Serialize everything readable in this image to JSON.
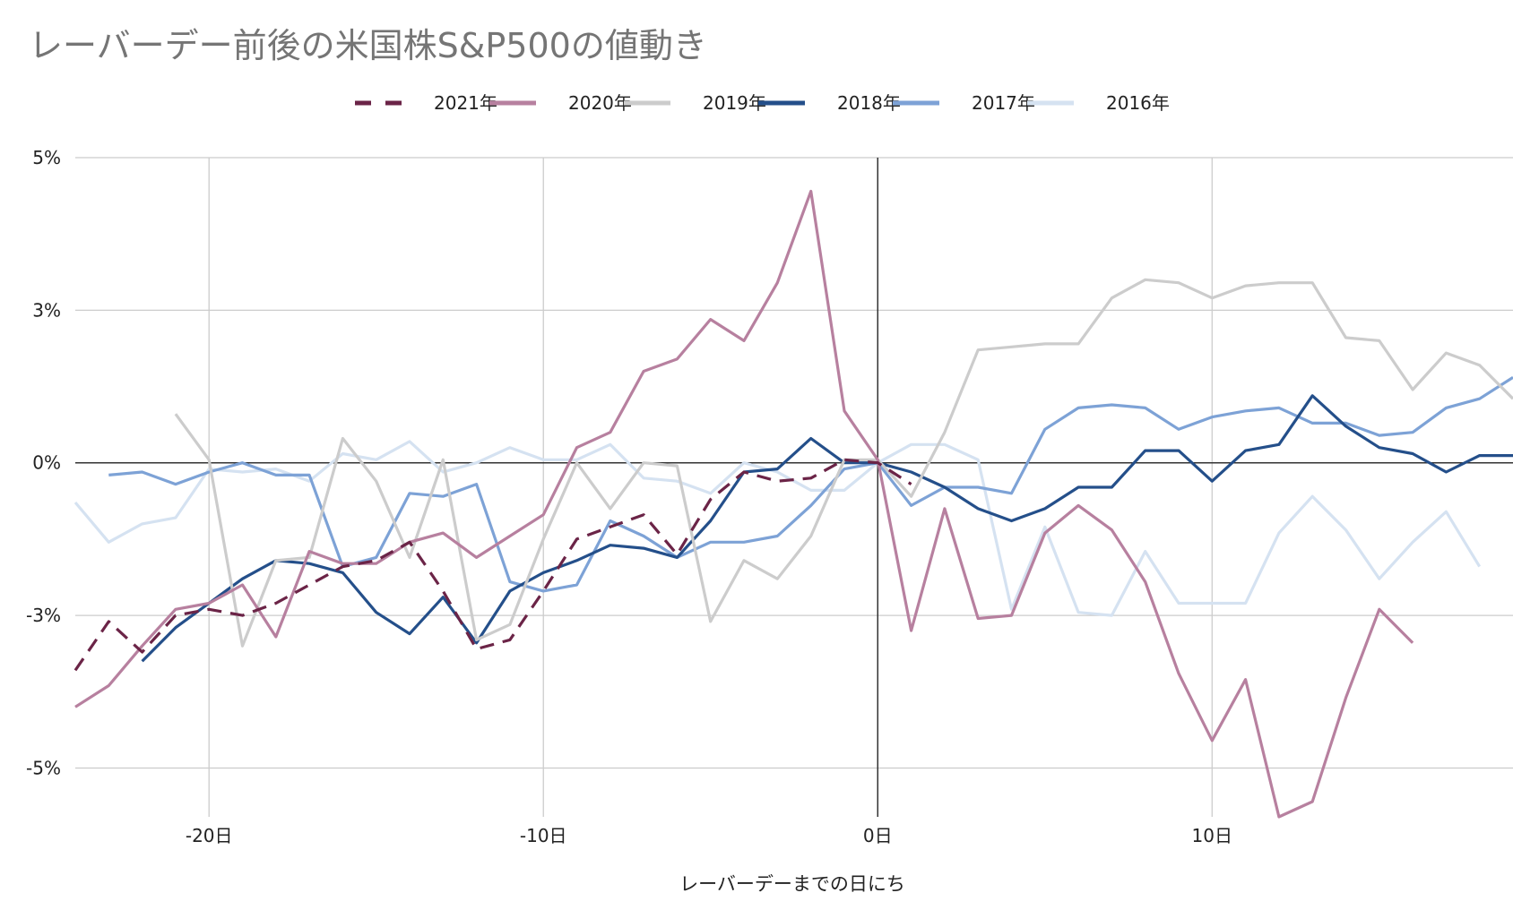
{
  "chart_data": {
    "type": "line",
    "title": "レーバーデー前後の米国株S&P500の値動き",
    "xlabel": "レーバーデーまでの日にち",
    "ylabel": "",
    "xlim": [
      -24,
      19
    ],
    "ylim": [
      -5.8,
      5
    ],
    "x_ticks": [
      {
        "value": -20,
        "label": "-20日"
      },
      {
        "value": -10,
        "label": "-10日"
      },
      {
        "value": 0,
        "label": "0日"
      },
      {
        "value": 10,
        "label": "10日"
      }
    ],
    "y_ticks": [
      {
        "value": 5,
        "label": "5%"
      },
      {
        "value": 2.5,
        "label": "3%"
      },
      {
        "value": 0,
        "label": "0%"
      },
      {
        "value": -2.5,
        "label": "-3%"
      },
      {
        "value": -5,
        "label": "-5%"
      }
    ],
    "grid": true,
    "legend_position": "top",
    "series": [
      {
        "name": "2021年",
        "color": "#6b2447",
        "dashed": true,
        "x": [
          -24,
          -23,
          -22,
          -21,
          -20,
          -19,
          -18,
          -17,
          -16,
          -15,
          -14,
          -13,
          -12,
          -11,
          -10,
          -9,
          -8,
          -7,
          -6,
          -5,
          -4,
          -3,
          -2,
          -1,
          0,
          1
        ],
        "y": [
          -3.4,
          -2.6,
          -3.1,
          -2.5,
          -2.4,
          -2.5,
          -2.3,
          -2.0,
          -1.7,
          -1.6,
          -1.3,
          -2.1,
          -3.05,
          -2.9,
          -2.1,
          -1.25,
          -1.05,
          -0.85,
          -1.5,
          -0.6,
          -0.15,
          -0.3,
          -0.25,
          0.05,
          0.0,
          -0.35
        ]
      },
      {
        "name": "2020年",
        "color": "#b7809f",
        "dashed": false,
        "x": [
          -24,
          -23,
          -22,
          -21,
          -20,
          -19,
          -18,
          -17,
          -16,
          -15,
          -14,
          -13,
          -12,
          -11,
          -10,
          -9,
          -8,
          -7,
          -6,
          -5,
          -4,
          -3,
          -2,
          -1,
          0,
          1,
          2,
          3,
          4,
          5,
          6,
          7,
          8,
          9,
          10,
          11,
          12,
          13,
          14,
          15,
          16
        ],
        "y": [
          -4.0,
          -3.65,
          -3.0,
          -2.4,
          -2.3,
          -2.0,
          -2.85,
          -1.45,
          -1.65,
          -1.65,
          -1.3,
          -1.15,
          -1.55,
          -1.2,
          -0.85,
          0.25,
          0.5,
          1.5,
          1.7,
          2.35,
          2.0,
          2.95,
          4.45,
          0.85,
          0.05,
          -2.75,
          -0.75,
          -2.55,
          -2.5,
          -1.15,
          -0.7,
          -1.1,
          -1.95,
          -3.45,
          -4.55,
          -3.55,
          -5.8,
          -5.55,
          -3.85,
          -2.4,
          -2.95
        ]
      },
      {
        "name": "2019年",
        "color": "#cccccc",
        "dashed": false,
        "x": [
          -21,
          -20,
          -19,
          -18,
          -17,
          -16,
          -15,
          -14,
          -13,
          -12,
          -11,
          -10,
          -9,
          -8,
          -7,
          -6,
          -5,
          -4,
          -3,
          -2,
          -1,
          0,
          1,
          2,
          3,
          4,
          5,
          6,
          7,
          8,
          9,
          10,
          11,
          12,
          13,
          14,
          15,
          16,
          17,
          18,
          19
        ],
        "y": [
          0.8,
          0.05,
          -3.0,
          -1.6,
          -1.55,
          0.4,
          -0.3,
          -1.55,
          0.05,
          -2.9,
          -2.65,
          -1.25,
          0.0,
          -0.75,
          0.0,
          -0.05,
          -2.6,
          -1.6,
          -1.9,
          -1.2,
          0.05,
          0.05,
          -0.55,
          0.5,
          1.85,
          1.9,
          1.95,
          1.95,
          2.7,
          3.0,
          2.95,
          2.7,
          2.9,
          2.95,
          2.95,
          2.05,
          2.0,
          1.2,
          1.8,
          1.6,
          1.05
        ]
      },
      {
        "name": "2018年",
        "color": "#244f8a",
        "dashed": false,
        "x": [
          -22,
          -21,
          -20,
          -19,
          -18,
          -17,
          -16,
          -15,
          -14,
          -13,
          -12,
          -11,
          -10,
          -9,
          -8,
          -7,
          -6,
          -5,
          -4,
          -3,
          -2,
          -1,
          0,
          1,
          2,
          3,
          4,
          5,
          6,
          7,
          8,
          9,
          10,
          11,
          12,
          13,
          14,
          15,
          16,
          17,
          18,
          19
        ],
        "y": [
          -3.25,
          -2.7,
          -2.3,
          -1.9,
          -1.6,
          -1.65,
          -1.8,
          -2.45,
          -2.8,
          -2.2,
          -2.95,
          -2.1,
          -1.8,
          -1.6,
          -1.35,
          -1.4,
          -1.55,
          -0.95,
          -0.15,
          -0.1,
          0.4,
          0.0,
          0.0,
          -0.15,
          -0.4,
          -0.75,
          -0.95,
          -0.75,
          -0.4,
          -0.4,
          0.2,
          0.2,
          -0.3,
          0.2,
          0.3,
          1.1,
          0.6,
          0.25,
          0.15,
          -0.15,
          0.12,
          0.12
        ]
      },
      {
        "name": "2017年",
        "color": "#7da2d6",
        "dashed": false,
        "x": [
          -23,
          -22,
          -21,
          -20,
          -19,
          -18,
          -17,
          -16,
          -15,
          -14,
          -13,
          -12,
          -11,
          -10,
          -9,
          -8,
          -7,
          -6,
          -5,
          -4,
          -3,
          -2,
          -1,
          0,
          1,
          2,
          3,
          4,
          5,
          6,
          7,
          8,
          9,
          10,
          11,
          12,
          13,
          14,
          15,
          16,
          17,
          18,
          19
        ],
        "y": [
          -0.2,
          -0.15,
          -0.35,
          -0.15,
          0.0,
          -0.2,
          -0.2,
          -1.7,
          -1.55,
          -0.5,
          -0.55,
          -0.35,
          -1.95,
          -2.1,
          -2.0,
          -0.95,
          -1.2,
          -1.55,
          -1.3,
          -1.3,
          -1.2,
          -0.7,
          -0.1,
          0.0,
          -0.7,
          -0.4,
          -0.4,
          -0.5,
          0.55,
          0.9,
          0.95,
          0.9,
          0.55,
          0.75,
          0.85,
          0.9,
          0.65,
          0.65,
          0.45,
          0.5,
          0.9,
          1.05,
          1.4
        ]
      },
      {
        "name": "2016年",
        "color": "#d5e2f1",
        "dashed": false,
        "x": [
          -24,
          -23,
          -22,
          -21,
          -20,
          -19,
          -18,
          -17,
          -16,
          -15,
          -14,
          -13,
          -12,
          -11,
          -10,
          -9,
          -8,
          -7,
          -6,
          -5,
          -4,
          -3,
          -2,
          -1,
          0,
          1,
          2,
          3,
          4,
          5,
          6,
          7,
          8,
          9,
          10,
          11,
          12,
          13,
          14,
          15,
          16,
          17,
          18
        ],
        "y": [
          -0.65,
          -1.3,
          -1.0,
          -0.9,
          -0.1,
          -0.15,
          -0.1,
          -0.3,
          0.15,
          0.05,
          0.35,
          -0.15,
          0.0,
          0.25,
          0.05,
          0.05,
          0.3,
          -0.25,
          -0.3,
          -0.5,
          0.0,
          -0.15,
          -0.45,
          -0.45,
          0.0,
          0.3,
          0.3,
          0.05,
          -2.4,
          -1.05,
          -2.45,
          -2.5,
          -1.45,
          -2.3,
          -2.3,
          -2.3,
          -1.15,
          -0.55,
          -1.1,
          -1.9,
          -1.3,
          -0.8,
          -1.7
        ]
      }
    ]
  }
}
